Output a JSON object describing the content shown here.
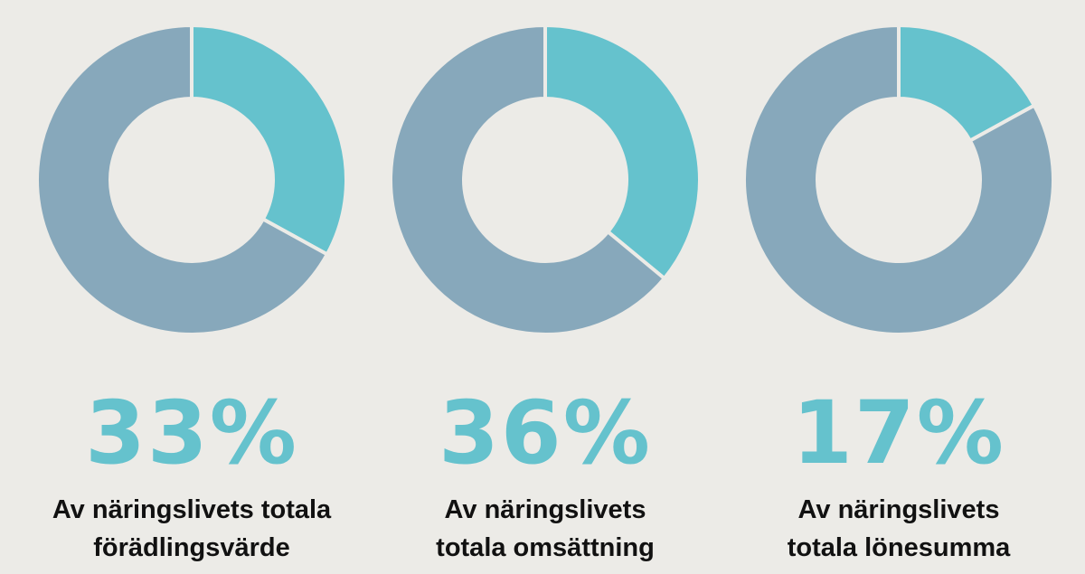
{
  "chart_data": [
    {
      "type": "pie",
      "donut": true,
      "values": [
        33,
        67
      ],
      "value_labels": [
        "33%",
        null
      ],
      "colors": [
        "#65c2cd",
        "#87a8bb"
      ],
      "caption": [
        "Av näringslivets totala",
        "förädlingsvärde"
      ]
    },
    {
      "type": "pie",
      "donut": true,
      "values": [
        36,
        64
      ],
      "value_labels": [
        "36%",
        null
      ],
      "colors": [
        "#65c2cd",
        "#87a8bb"
      ],
      "caption": [
        "Av näringslivets",
        "totala omsättning"
      ]
    },
    {
      "type": "pie",
      "donut": true,
      "values": [
        17,
        83
      ],
      "value_labels": [
        "17%",
        null
      ],
      "colors": [
        "#65c2cd",
        "#87a8bb"
      ],
      "caption": [
        "Av näringslivets",
        "totala lönesumma"
      ]
    }
  ]
}
